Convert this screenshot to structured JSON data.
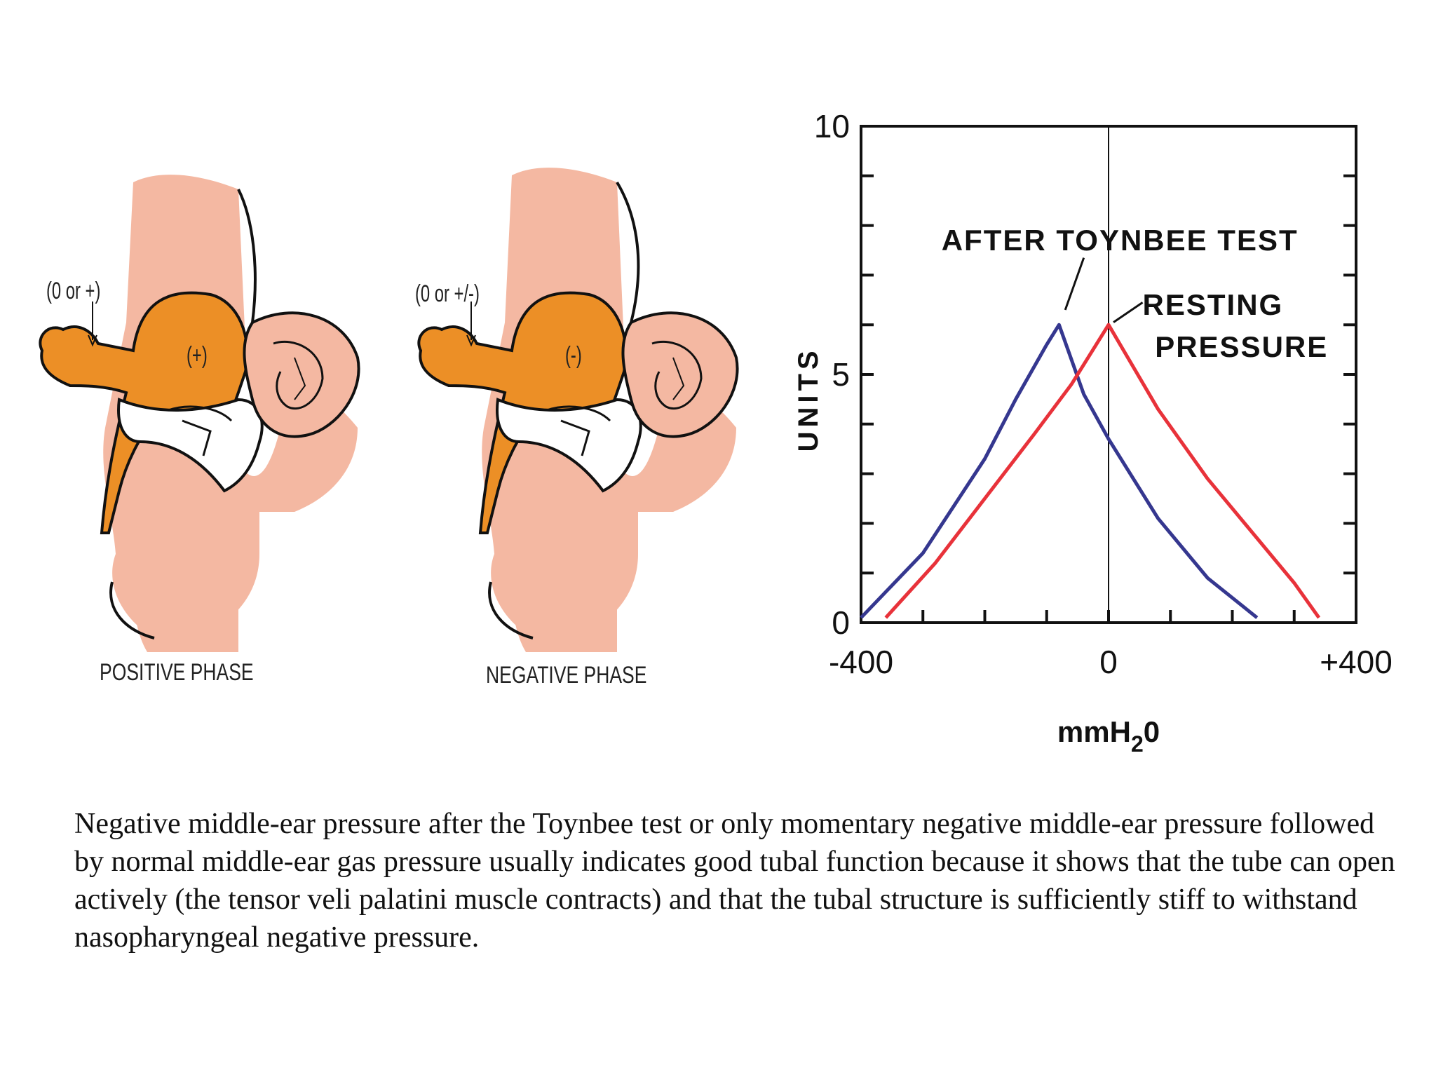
{
  "diagrams": {
    "positive": {
      "pressure_note": "(0 or +)",
      "cavity_sign": "(+)",
      "label": "POSITIVE PHASE"
    },
    "negative": {
      "pressure_note": "(0 or +/-)",
      "cavity_sign": "(-)",
      "label": "NEGATIVE PHASE"
    }
  },
  "colors": {
    "skin": "#f4b8a2",
    "cavity": "#ec8f26",
    "outline": "#111111",
    "after_toynbee": "#35378f",
    "resting": "#e8323a"
  },
  "chart_data": {
    "type": "line",
    "xlabel": "mmH20",
    "ylabel": "UNITS",
    "xlim": [
      -400,
      400
    ],
    "ylim": [
      0,
      10
    ],
    "x_ticks": [
      "-400",
      "0",
      "+400"
    ],
    "y_ticks": [
      "0",
      "5",
      "10"
    ],
    "vertical_reference_x": 0,
    "series": [
      {
        "name": "AFTER TOYNBEE TEST",
        "color": "#35378f",
        "x": [
          -400,
          -300,
          -200,
          -150,
          -100,
          -80,
          -40,
          0,
          80,
          160,
          240
        ],
        "y": [
          0.1,
          1.4,
          3.3,
          4.5,
          5.6,
          6.0,
          4.6,
          3.7,
          2.1,
          0.9,
          0.1
        ]
      },
      {
        "name": "RESTING PRESSURE",
        "color": "#e8323a",
        "x": [
          -360,
          -280,
          -200,
          -120,
          -60,
          0,
          80,
          160,
          240,
          300,
          340
        ],
        "y": [
          0.1,
          1.2,
          2.5,
          3.8,
          4.8,
          6.0,
          4.3,
          2.9,
          1.7,
          0.8,
          0.1
        ]
      }
    ],
    "annotations": [
      {
        "text": "AFTER TOYNBEE TEST",
        "points_to_series": 0
      },
      {
        "text": "RESTING",
        "points_to_series": 1
      },
      {
        "text": "PRESSURE",
        "points_to_series": 1
      }
    ]
  },
  "caption": "Negative middle-ear pressure after the Toynbee test or only momentary negative middle-ear pressure followed by normal middle-ear gas pressure usually indicates good tubal function because it shows that the tube can open actively (the tensor veli palatini muscle contracts) and that the tubal structure is sufficiently stiff to withstand nasopharyngeal negative pressure."
}
